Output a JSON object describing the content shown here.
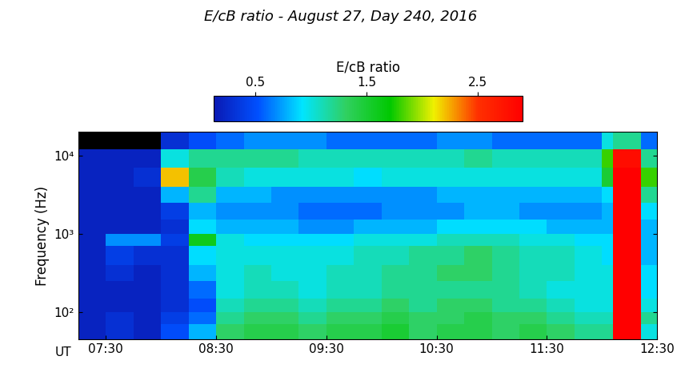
{
  "chart_data": {
    "type": "heatmap",
    "title": "E/cB ratio - August 27, Day 240, 2016",
    "xlabel": "UT",
    "ylabel": "Frequency (Hz)",
    "log": "y",
    "x_edges": [
      7.25,
      7.5,
      7.75,
      8.0,
      8.25,
      8.5,
      8.75,
      9.0,
      9.25,
      9.5,
      9.75,
      10.0,
      10.25,
      10.5,
      10.75,
      11.0,
      11.25,
      11.5,
      11.75,
      12.0,
      12.1,
      12.35,
      12.5
    ],
    "y_edges": [
      45,
      70,
      100,
      150,
      250,
      400,
      700,
      1000,
      1500,
      2500,
      4000,
      7000,
      12000,
      20000
    ],
    "cells": [
      [
        0.2,
        0.3,
        0.2,
        0.5,
        0.8,
        1.3,
        1.4,
        1.4,
        1.3,
        1.4,
        1.4,
        1.5,
        1.3,
        1.4,
        1.4,
        1.3,
        1.4,
        1.3,
        1.2,
        1.2,
        3.0,
        1.0
      ],
      [
        0.2,
        0.3,
        0.2,
        0.4,
        0.6,
        1.2,
        1.3,
        1.3,
        1.2,
        1.3,
        1.3,
        1.4,
        1.3,
        1.3,
        1.4,
        1.3,
        1.3,
        1.2,
        1.1,
        1.1,
        3.0,
        1.2
      ],
      [
        0.2,
        0.2,
        0.2,
        0.3,
        0.5,
        1.1,
        1.2,
        1.2,
        1.1,
        1.2,
        1.2,
        1.3,
        1.2,
        1.3,
        1.3,
        1.2,
        1.2,
        1.1,
        1.0,
        1.0,
        3.0,
        1.0
      ],
      [
        0.2,
        0.2,
        0.2,
        0.3,
        0.6,
        1.0,
        1.1,
        1.1,
        1.0,
        1.1,
        1.1,
        1.2,
        1.2,
        1.2,
        1.2,
        1.2,
        1.1,
        1.0,
        1.0,
        1.0,
        3.0,
        0.9
      ],
      [
        0.2,
        0.3,
        0.2,
        0.3,
        0.8,
        1.0,
        1.1,
        1.0,
        1.0,
        1.1,
        1.1,
        1.2,
        1.2,
        1.3,
        1.3,
        1.2,
        1.1,
        1.1,
        1.0,
        1.0,
        3.0,
        0.9
      ],
      [
        0.2,
        0.4,
        0.3,
        0.3,
        0.9,
        1.0,
        1.0,
        1.0,
        1.0,
        1.0,
        1.1,
        1.1,
        1.2,
        1.2,
        1.3,
        1.2,
        1.1,
        1.1,
        1.0,
        0.9,
        3.0,
        0.8
      ],
      [
        0.2,
        0.7,
        0.7,
        0.4,
        1.6,
        1.0,
        0.9,
        0.9,
        0.9,
        0.9,
        1.0,
        1.0,
        1.0,
        1.1,
        1.1,
        1.1,
        1.0,
        1.0,
        0.9,
        0.9,
        3.0,
        0.8
      ],
      [
        0.2,
        0.2,
        0.2,
        0.3,
        0.9,
        0.8,
        0.8,
        0.8,
        0.7,
        0.7,
        0.8,
        0.8,
        0.8,
        0.9,
        0.9,
        0.9,
        0.9,
        0.8,
        0.8,
        0.8,
        3.0,
        0.8
      ],
      [
        0.2,
        0.2,
        0.2,
        0.4,
        0.8,
        0.7,
        0.7,
        0.7,
        0.6,
        0.6,
        0.6,
        0.7,
        0.7,
        0.7,
        0.8,
        0.8,
        0.7,
        0.7,
        0.7,
        0.8,
        3.0,
        0.9
      ],
      [
        0.2,
        0.2,
        0.2,
        0.8,
        1.2,
        0.8,
        0.8,
        0.7,
        0.7,
        0.7,
        0.7,
        0.7,
        0.7,
        0.8,
        0.8,
        0.8,
        0.8,
        0.8,
        0.8,
        0.9,
        3.0,
        1.2
      ],
      [
        0.2,
        0.2,
        0.3,
        2.2,
        1.4,
        1.1,
        1.0,
        1.0,
        1.0,
        1.0,
        0.9,
        1.0,
        1.0,
        1.0,
        1.0,
        1.0,
        1.0,
        1.0,
        1.0,
        1.5,
        3.0,
        1.8
      ],
      [
        0.2,
        0.2,
        0.2,
        1.0,
        1.2,
        1.2,
        1.2,
        1.2,
        1.1,
        1.1,
        1.1,
        1.1,
        1.1,
        1.1,
        1.2,
        1.1,
        1.1,
        1.1,
        1.1,
        1.8,
        2.8,
        1.2
      ],
      [
        null,
        null,
        null,
        0.3,
        0.5,
        0.6,
        0.7,
        0.7,
        0.7,
        0.6,
        0.6,
        0.6,
        0.6,
        0.7,
        0.7,
        0.6,
        0.6,
        0.6,
        0.6,
        1.0,
        1.2,
        0.6
      ]
    ],
    "xlim": [
      7.25,
      12.5
    ],
    "xticks": [
      {
        "value": 7.5,
        "label": "07:30"
      },
      {
        "value": 8.5,
        "label": "08:30"
      },
      {
        "value": 9.5,
        "label": "09:30"
      },
      {
        "value": 10.5,
        "label": "10:30"
      },
      {
        "value": 11.5,
        "label": "11:30"
      },
      {
        "value": 12.5,
        "label": "12:30"
      }
    ],
    "ylim": [
      45,
      20000
    ],
    "yticks": [
      {
        "value": 100,
        "label": "10²"
      },
      {
        "value": 1000,
        "label": "10³"
      },
      {
        "value": 10000,
        "label": "10⁴"
      }
    ],
    "colorbar_label": "E/cB ratio",
    "colorbar_range": [
      0.13,
      2.9
    ],
    "colorbar_ticks": [
      0.5,
      1.5,
      2.5
    ]
  }
}
